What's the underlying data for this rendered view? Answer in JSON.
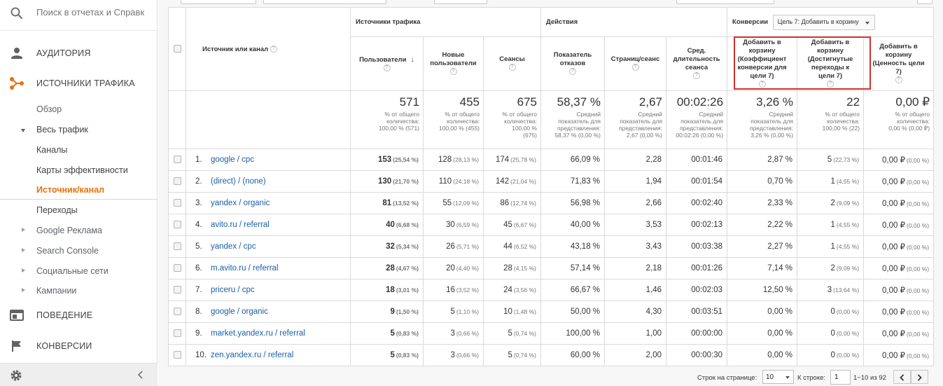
{
  "sidebar": {
    "search_placeholder": "Поиск в отчетах и Справк",
    "sections": {
      "audience": "АУДИТОРИЯ",
      "acquisition": "ИСТОЧНИКИ ТРАФИКА",
      "behavior": "ПОВЕДЕНИЕ",
      "conversions": "КОНВЕРСИИ"
    },
    "acquisition_items": {
      "overview": "Обзор",
      "all_traffic": "Весь трафик",
      "channels": "Каналы",
      "treemaps": "Карты эффективности",
      "source_medium": "Источник/канал",
      "referrals": "Переходы",
      "google_ads": "Google Реклама",
      "search_console": "Search Console",
      "social": "Социальные сети",
      "campaigns": "Кампании"
    }
  },
  "table": {
    "group_headers": {
      "traffic_sources": "Источники трафика",
      "actions": "Действия",
      "conversions": "Конверсии",
      "goal_select": "Цель 7: Добавить в корзину"
    },
    "dimension_header": "Источник или канал",
    "columns": [
      {
        "lines": [
          "Пользователи"
        ]
      },
      {
        "lines": [
          "Новые",
          "пользователи"
        ]
      },
      {
        "lines": [
          "Сеансы"
        ]
      },
      {
        "lines": [
          "Показатель",
          "отказов"
        ]
      },
      {
        "lines": [
          "Страниц/сеанс"
        ]
      },
      {
        "lines": [
          "Сред.",
          "длительность",
          "сеанса"
        ]
      },
      {
        "lines": [
          "Добавить в",
          "корзину",
          "(Коэффициент",
          "конверсии для",
          "цели 7)"
        ]
      },
      {
        "lines": [
          "Добавить в",
          "корзину",
          "(Достигнутые",
          "переходы к",
          "цели 7)"
        ]
      },
      {
        "lines": [
          "Добавить в",
          "корзину",
          "(Ценность цели",
          "7)"
        ]
      }
    ],
    "totals": [
      {
        "value": "571",
        "sub": [
          "% от общего",
          "количества:",
          "100,00 % (571)"
        ]
      },
      {
        "value": "455",
        "sub": [
          "% от общего",
          "количества:",
          "100,00 % (455)"
        ]
      },
      {
        "value": "675",
        "sub": [
          "% от общего",
          "количества:",
          "100,00 %",
          "(675)"
        ]
      },
      {
        "value": "58,37 %",
        "sub": [
          "Средний",
          "показатель для",
          "представления:",
          "58,37 % (0,00 %)"
        ]
      },
      {
        "value": "2,67",
        "sub": [
          "Средний",
          "показатель для",
          "представления:",
          "2,67 (0,00 %)"
        ]
      },
      {
        "value": "00:02:26",
        "sub": [
          "Средний",
          "показатель для",
          "представления:",
          "00:02:26 (0,00 %)"
        ]
      },
      {
        "value": "3,26 %",
        "sub": [
          "Средний",
          "показатель для",
          "представления:",
          "3,26 % (0,00 %)"
        ]
      },
      {
        "value": "22",
        "sub": [
          "% от общего",
          "количества:",
          "100,00 % (22)"
        ]
      },
      {
        "value": "0,00 ₽",
        "sub": [
          "% от общего",
          "количества:",
          "0,00 % (0,00 ₽)"
        ]
      }
    ],
    "rows": [
      {
        "n": "1.",
        "src": "google / cpc",
        "u": "153",
        "up": "(25,54 %)",
        "nu": "128",
        "nup": "(28,13 %)",
        "s": "174",
        "sp": "(25,78 %)",
        "br": "66,09 %",
        "pps": "2,28",
        "dur": "00:01:46",
        "cr": "2,87 %",
        "gc": "5",
        "gcp": "(22,73 %)",
        "gv": "0,00 ₽",
        "gvp": "(0,00 %)"
      },
      {
        "n": "2.",
        "src": "(direct) / (none)",
        "u": "130",
        "up": "(21,70 %)",
        "nu": "110",
        "nup": "(24,18 %)",
        "s": "142",
        "sp": "(21,04 %)",
        "br": "71,83 %",
        "pps": "1,94",
        "dur": "00:01:54",
        "cr": "0,70 %",
        "gc": "1",
        "gcp": "(4,55 %)",
        "gv": "0,00 ₽",
        "gvp": "(0,00 %)"
      },
      {
        "n": "3.",
        "src": "yandex / organic",
        "u": "81",
        "up": "(13,52 %)",
        "nu": "55",
        "nup": "(12,09 %)",
        "s": "86",
        "sp": "(12,74 %)",
        "br": "56,98 %",
        "pps": "2,66",
        "dur": "00:02:40",
        "cr": "2,33 %",
        "gc": "2",
        "gcp": "(9,09 %)",
        "gv": "0,00 ₽",
        "gvp": "(0,00 %)"
      },
      {
        "n": "4.",
        "src": "avito.ru / referral",
        "u": "40",
        "up": "(6,68 %)",
        "nu": "30",
        "nup": "(6,59 %)",
        "s": "45",
        "sp": "(6,67 %)",
        "br": "40,00 %",
        "pps": "3,53",
        "dur": "00:02:13",
        "cr": "2,22 %",
        "gc": "1",
        "gcp": "(4,55 %)",
        "gv": "0,00 ₽",
        "gvp": "(0,00 %)"
      },
      {
        "n": "5.",
        "src": "yandex / cpc",
        "u": "32",
        "up": "(5,34 %)",
        "nu": "26",
        "nup": "(5,71 %)",
        "s": "44",
        "sp": "(6,52 %)",
        "br": "43,18 %",
        "pps": "3,43",
        "dur": "00:03:38",
        "cr": "2,27 %",
        "gc": "1",
        "gcp": "(4,55 %)",
        "gv": "0,00 ₽",
        "gvp": "(0,00 %)"
      },
      {
        "n": "6.",
        "src": "m.avito.ru / referral",
        "u": "28",
        "up": "(4,67 %)",
        "nu": "20",
        "nup": "(4,40 %)",
        "s": "28",
        "sp": "(4,15 %)",
        "br": "57,14 %",
        "pps": "2,18",
        "dur": "00:01:26",
        "cr": "7,14 %",
        "gc": "2",
        "gcp": "(9,09 %)",
        "gv": "0,00 ₽",
        "gvp": "(0,00 %)"
      },
      {
        "n": "7.",
        "src": "priceru / cpc",
        "u": "18",
        "up": "(3,01 %)",
        "nu": "16",
        "nup": "(3,52 %)",
        "s": "24",
        "sp": "(3,56 %)",
        "br": "66,67 %",
        "pps": "1,46",
        "dur": "00:02:03",
        "cr": "12,50 %",
        "gc": "3",
        "gcp": "(13,64 %)",
        "gv": "0,00 ₽",
        "gvp": "(0,00 %)"
      },
      {
        "n": "8.",
        "src": "google / organic",
        "u": "9",
        "up": "(1,50 %)",
        "nu": "5",
        "nup": "(1,10 %)",
        "s": "10",
        "sp": "(1,48 %)",
        "br": "50,00 %",
        "pps": "4,30",
        "dur": "00:03:51",
        "cr": "0,00 %",
        "gc": "0",
        "gcp": "(0,00 %)",
        "gv": "0,00 ₽",
        "gvp": "(0,00 %)"
      },
      {
        "n": "9.",
        "src": "market.yandex.ru / referral",
        "u": "5",
        "up": "(0,83 %)",
        "nu": "3",
        "nup": "(0,66 %)",
        "s": "5",
        "sp": "(0,74 %)",
        "br": "100,00 %",
        "pps": "1,00",
        "dur": "00:00:00",
        "cr": "0,00 %",
        "gc": "0",
        "gcp": "(0,00 %)",
        "gv": "0,00 ₽",
        "gvp": "(0,00 %)"
      },
      {
        "n": "10.",
        "src": "zen.yandex.ru / referral",
        "u": "5",
        "up": "(0,83 %)",
        "nu": "3",
        "nup": "(0,66 %)",
        "s": "5",
        "sp": "(0,74 %)",
        "br": "60,00 %",
        "pps": "2,00",
        "dur": "00:00:30",
        "cr": "0,00 %",
        "gc": "0",
        "gcp": "(0,00 %)",
        "gv": "0,00 ₽",
        "gvp": "(0,00 %)"
      }
    ]
  },
  "pagination": {
    "rows_label": "Строк на странице:",
    "rows_value": "10",
    "goto_label": "К строке:",
    "goto_value": "1",
    "range": "1−10 из 92"
  },
  "colors": {
    "accent_orange": "#e8710a",
    "link_blue": "#1a5ea6",
    "highlight_red": "#d32f2f"
  }
}
